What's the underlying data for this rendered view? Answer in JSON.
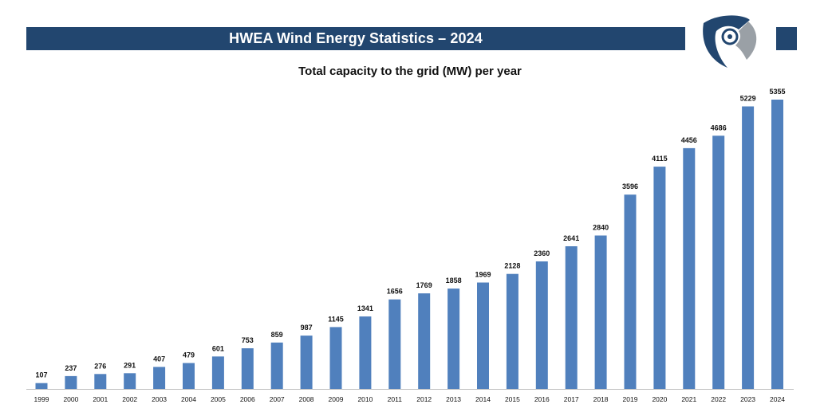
{
  "header": {
    "title": "HWEA Wind Energy Statistics – 2024",
    "brand_color": "#22466f",
    "logo_icon": "wind-turbine-logo-icon"
  },
  "chart_data": {
    "type": "bar",
    "title": "Total capacity to the grid (MW) per year",
    "xlabel": "",
    "ylabel": "",
    "categories": [
      "1999",
      "2000",
      "2001",
      "2002",
      "2003",
      "2004",
      "2005",
      "2006",
      "2007",
      "2008",
      "2009",
      "2010",
      "2011",
      "2012",
      "2013",
      "2014",
      "2015",
      "2016",
      "2017",
      "2018",
      "2019",
      "2020",
      "2021",
      "2022",
      "2023",
      "2024"
    ],
    "values": [
      107,
      237,
      276,
      291,
      407,
      479,
      601,
      753,
      859,
      987,
      1145,
      1341,
      1656,
      1769,
      1858,
      1969,
      2128,
      2360,
      2641,
      2840,
      3596,
      4115,
      4456,
      4686,
      5229,
      5355
    ],
    "ylim": [
      0,
      5355
    ],
    "bar_color": "#5080bd",
    "data_labels": true,
    "grid": false,
    "legend": "none"
  }
}
